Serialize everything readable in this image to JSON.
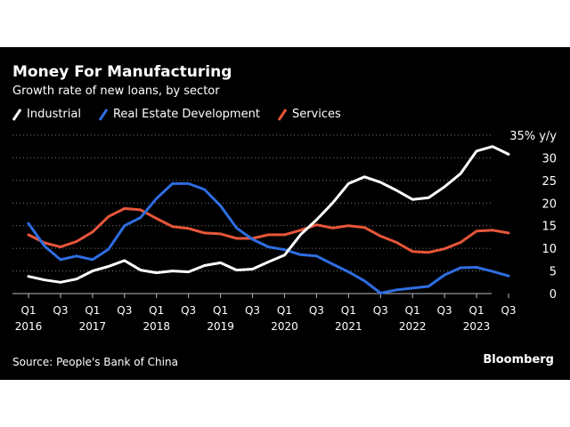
{
  "header": {
    "title": "Money For Manufacturing",
    "subtitle": "Growth rate of new loans, by sector"
  },
  "footer": {
    "source": "Source: People's Bank of China",
    "brand": "Bloomberg"
  },
  "colors": {
    "background": "#000000",
    "text": "#ffffff",
    "gridline": "#7a7a7a"
  },
  "chart_data": {
    "type": "line",
    "title": "Money For Manufacturing",
    "subtitle": "Growth rate of new loans, by sector",
    "xlabel": "",
    "ylabel": "% y/y",
    "y_unit_label": "35% y/y",
    "ylim": [
      0,
      35
    ],
    "yticks": [
      0,
      5,
      10,
      15,
      20,
      25,
      30
    ],
    "grid": true,
    "legend_position": "top-left",
    "x_range": [
      2016.0,
      2023.5
    ],
    "xticks": [
      {
        "x": 2016.0,
        "label": "Q1",
        "year": "2016"
      },
      {
        "x": 2016.5,
        "label": "Q3",
        "year": ""
      },
      {
        "x": 2017.0,
        "label": "Q1",
        "year": "2017"
      },
      {
        "x": 2017.5,
        "label": "Q3",
        "year": ""
      },
      {
        "x": 2018.0,
        "label": "Q1",
        "year": "2018"
      },
      {
        "x": 2018.5,
        "label": "Q3",
        "year": ""
      },
      {
        "x": 2019.0,
        "label": "Q1",
        "year": "2019"
      },
      {
        "x": 2019.5,
        "label": "Q3",
        "year": ""
      },
      {
        "x": 2020.0,
        "label": "Q1",
        "year": "2020"
      },
      {
        "x": 2020.5,
        "label": "Q3",
        "year": ""
      },
      {
        "x": 2021.0,
        "label": "Q1",
        "year": "2021"
      },
      {
        "x": 2021.5,
        "label": "Q3",
        "year": ""
      },
      {
        "x": 2022.0,
        "label": "Q1",
        "year": "2022"
      },
      {
        "x": 2022.5,
        "label": "Q3",
        "year": ""
      },
      {
        "x": 2023.0,
        "label": "Q1",
        "year": "2023"
      },
      {
        "x": 2023.5,
        "label": "Q3",
        "year": ""
      }
    ],
    "x": [
      2016.0,
      2016.25,
      2016.5,
      2016.75,
      2017.0,
      2017.25,
      2017.5,
      2017.75,
      2018.0,
      2018.25,
      2018.5,
      2018.75,
      2019.0,
      2019.25,
      2019.5,
      2019.75,
      2020.0,
      2020.25,
      2020.5,
      2020.75,
      2021.0,
      2021.25,
      2021.5,
      2021.75,
      2022.0,
      2022.25,
      2022.5,
      2022.75,
      2023.0,
      2023.25,
      2023.5
    ],
    "series": [
      {
        "name": "Industrial",
        "color": "#ffffff",
        "values": [
          3.8,
          3.0,
          2.5,
          3.2,
          5.0,
          6.0,
          7.3,
          5.2,
          4.6,
          5.0,
          4.8,
          6.2,
          6.8,
          5.2,
          5.4,
          7.0,
          8.5,
          13.0,
          16.3,
          20.0,
          24.3,
          25.8,
          24.6,
          22.8,
          20.8,
          21.2,
          23.6,
          26.5,
          31.5,
          32.5,
          30.8
        ]
      },
      {
        "name": "Real Estate Development",
        "color": "#2f6de1",
        "values": [
          15.5,
          10.5,
          7.5,
          8.3,
          7.5,
          9.8,
          15.0,
          16.8,
          21.0,
          24.3,
          24.3,
          23.0,
          19.4,
          14.5,
          12.0,
          10.3,
          9.7,
          8.6,
          8.3,
          6.5,
          4.8,
          2.8,
          0.1,
          0.8,
          1.2,
          1.6,
          4.1,
          5.7,
          5.8,
          4.9,
          3.9
        ]
      },
      {
        "name": "Services",
        "color": "#e8563a",
        "values": [
          13.0,
          11.2,
          10.3,
          11.5,
          13.6,
          17.0,
          18.8,
          18.5,
          16.6,
          14.8,
          14.4,
          13.4,
          13.2,
          12.2,
          12.2,
          13.0,
          13.0,
          14.0,
          15.2,
          14.5,
          15.0,
          14.6,
          12.7,
          11.3,
          9.3,
          9.1,
          9.9,
          11.3,
          13.8,
          14.0,
          13.4
        ]
      }
    ]
  }
}
